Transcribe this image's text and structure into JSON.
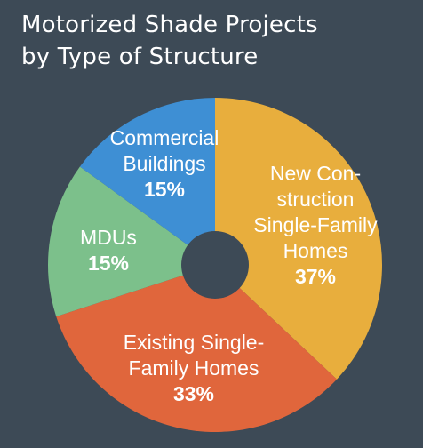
{
  "chart_data": {
    "type": "pie",
    "title_lines": [
      "Motorized Shade Projects",
      "by Type of Structure"
    ],
    "slices": [
      {
        "label_lines": [
          "New Con-",
          "struction",
          "Single-Family",
          "Homes"
        ],
        "value": 37,
        "value_label": "37%",
        "color": "#e8ae3d"
      },
      {
        "label_lines": [
          "Existing Single-",
          "Family Homes"
        ],
        "value": 33,
        "value_label": "33%",
        "color": "#e0663c"
      },
      {
        "label_lines": [
          "MDUs"
        ],
        "value": 15,
        "value_label": "15%",
        "color": "#7cc08b"
      },
      {
        "label_lines": [
          "Commercial",
          "Buildings"
        ],
        "value": 15,
        "value_label": "15%",
        "color": "#3e8fd4"
      }
    ],
    "background": "#3d4a56",
    "donut_hole_color": "#3d4a56"
  }
}
